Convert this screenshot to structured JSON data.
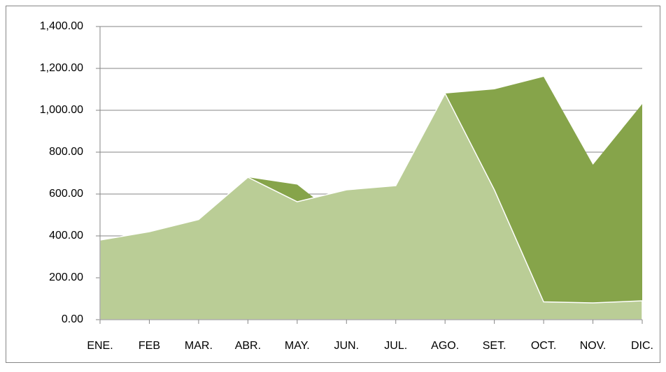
{
  "chart_data": {
    "type": "area",
    "categories": [
      "ENE.",
      "FEB",
      "MAR.",
      "ABR.",
      "MAY.",
      "JUN.",
      "JUL.",
      "AGO.",
      "SET.",
      "OCT.",
      "NOV.",
      "DIC."
    ],
    "series": [
      {
        "color": "#86a44a",
        "values": [
          380,
          420,
          478,
          680,
          645,
          460,
          600,
          1080,
          1100,
          1160,
          740,
          1030
        ]
      },
      {
        "color": "#bacd96",
        "values": [
          380,
          420,
          478,
          680,
          563,
          620,
          640,
          1080,
          620,
          85,
          80,
          90
        ]
      }
    ],
    "ylim": [
      0,
      1400
    ],
    "yticks": [
      {
        "value": 0,
        "label": "0.00"
      },
      {
        "value": 200,
        "label": "200.00"
      },
      {
        "value": 400,
        "label": "400.00"
      },
      {
        "value": 600,
        "label": "600.00"
      },
      {
        "value": 800,
        "label": "800.00"
      },
      {
        "value": 1000,
        "label": "1,000.00"
      },
      {
        "value": 1200,
        "label": "1,200.00"
      },
      {
        "value": 1400,
        "label": "1,400.00"
      }
    ],
    "grid": true
  }
}
